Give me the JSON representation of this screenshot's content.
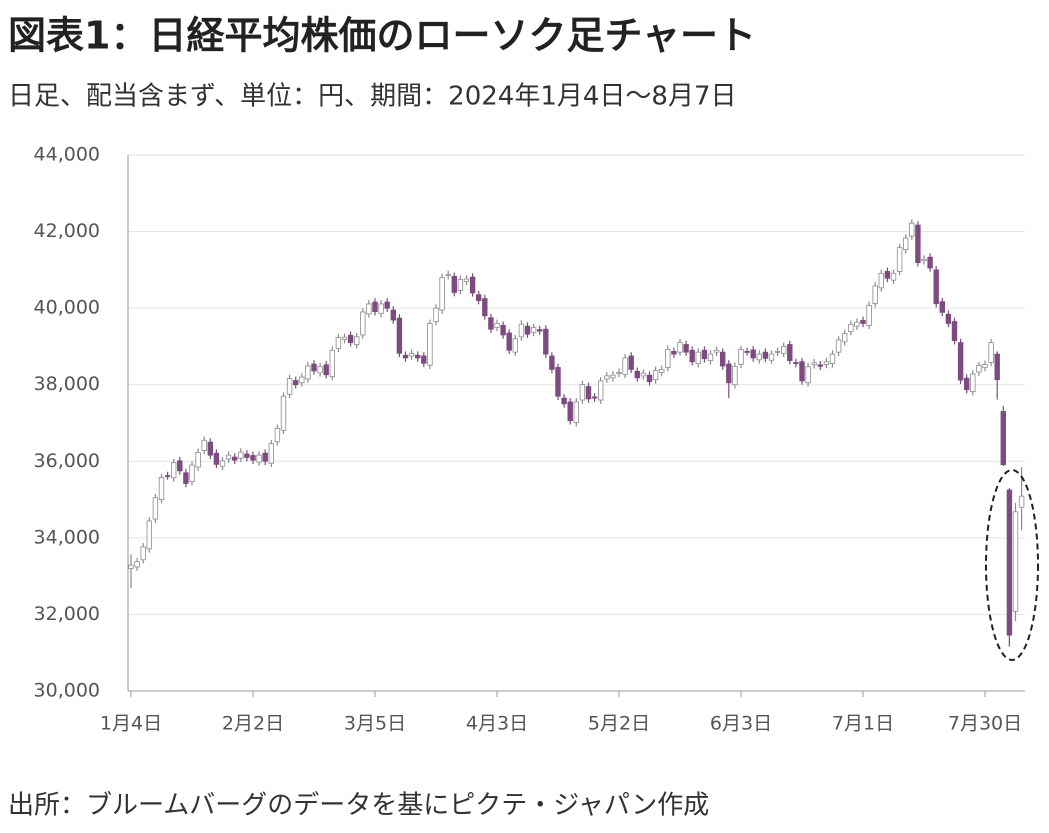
{
  "chart_data": {
    "type": "candlestick",
    "title": "図表1：日経平均株価のローソク足チャート",
    "subtitle": "日足、配当含まず、単位：円、期間：2024年1月4日～8月7日",
    "source": "出所：ブルームバーグのデータを基にピクテ・ジャパン作成",
    "up_color": "#ffffff",
    "up_stroke": "#8c8c8c",
    "down_color": "#7d4b80",
    "grid": true,
    "ylim": [
      30000,
      44000
    ],
    "yticks": [
      {
        "value": 30000,
        "label": "30,000"
      },
      {
        "value": 32000,
        "label": "32,000"
      },
      {
        "value": 34000,
        "label": "34,000"
      },
      {
        "value": 36000,
        "label": "36,000"
      },
      {
        "value": 38000,
        "label": "38,000"
      },
      {
        "value": 40000,
        "label": "40,000"
      },
      {
        "value": 42000,
        "label": "42,000"
      },
      {
        "value": 44000,
        "label": "44,000"
      }
    ],
    "categories": [
      "1月4日",
      null,
      null,
      null,
      null,
      null,
      null,
      null,
      null,
      null,
      null,
      null,
      null,
      null,
      null,
      null,
      null,
      null,
      null,
      null,
      "2月2日",
      null,
      null,
      null,
      null,
      null,
      null,
      null,
      null,
      null,
      null,
      null,
      null,
      null,
      null,
      null,
      null,
      null,
      null,
      null,
      "3月5日",
      null,
      null,
      null,
      null,
      null,
      null,
      null,
      null,
      null,
      null,
      null,
      null,
      null,
      null,
      null,
      null,
      null,
      null,
      null,
      "4月3日",
      null,
      null,
      null,
      null,
      null,
      null,
      null,
      null,
      null,
      null,
      null,
      null,
      null,
      null,
      null,
      null,
      null,
      null,
      null,
      "5月2日",
      null,
      null,
      null,
      null,
      null,
      null,
      null,
      null,
      null,
      null,
      null,
      null,
      null,
      null,
      null,
      null,
      null,
      null,
      null,
      "6月3日",
      null,
      null,
      null,
      null,
      null,
      null,
      null,
      null,
      null,
      null,
      null,
      null,
      null,
      null,
      null,
      null,
      null,
      null,
      null,
      "7月1日",
      null,
      null,
      null,
      null,
      null,
      null,
      null,
      null,
      null,
      null,
      null,
      null,
      null,
      null,
      null,
      null,
      null,
      null,
      null,
      "7月30日",
      null,
      null,
      null,
      null,
      null,
      null
    ],
    "open": [
      33200,
      33238,
      33427,
      33713,
      34491,
      34999,
      35627,
      35569,
      36013,
      35700,
      35470,
      35850,
      36280,
      36500,
      36210,
      35870,
      36060,
      36110,
      36080,
      36190,
      36150,
      35980,
      36210,
      35950,
      36510,
      36810,
      37750,
      38110,
      38050,
      38150,
      38540,
      38310,
      38520,
      38210,
      38950,
      39180,
      39290,
      39050,
      39300,
      39850,
      40160,
      39860,
      40160,
      39950,
      39740,
      38770,
      38750,
      38770,
      38750,
      38510,
      39650,
      39950,
      40850,
      40830,
      40460,
      40700,
      40810,
      40350,
      40250,
      39750,
      39500,
      39550,
      39350,
      38850,
      39250,
      39530,
      39370,
      39440,
      39450,
      38750,
      38450,
      37650,
      37550,
      37010,
      37600,
      37950,
      37680,
      37600,
      38150,
      38180,
      38300,
      38270,
      38750,
      38350,
      38230,
      38250,
      38130,
      38320,
      38450,
      38870,
      38850,
      39050,
      38900,
      38550,
      38900,
      38630,
      38850,
      38850,
      38540,
      38000,
      38530,
      38870,
      38910,
      38650,
      38850,
      38640,
      38850,
      38820,
      39050,
      38580,
      38600,
      38050,
      38520,
      38520,
      38530,
      38550,
      38850,
      39120,
      39390,
      39530,
      39680,
      39550,
      40120,
      40530,
      40960,
      40730,
      40960,
      41530,
      41880,
      42170,
      41240,
      41330,
      41000,
      40170,
      39840,
      39650,
      39100,
      38170,
      37820,
      38330,
      38450,
      38580,
      38800,
      37300,
      35250,
      32080,
      34800
    ],
    "high": [
      33570,
      33477,
      33863,
      34541,
      35149,
      35677,
      35727,
      36063,
      36113,
      35800,
      36000,
      36330,
      36650,
      36600,
      36310,
      36110,
      36260,
      36210,
      36340,
      36290,
      36250,
      36260,
      36310,
      36560,
      36960,
      37800,
      38260,
      38210,
      38300,
      38590,
      38640,
      38570,
      38620,
      39000,
      39330,
      39340,
      39390,
      39350,
      40000,
      40210,
      40260,
      40210,
      40260,
      40050,
      39840,
      38870,
      38920,
      38870,
      38850,
      39700,
      40100,
      40900,
      40980,
      40930,
      40850,
      40860,
      40910,
      40450,
      40350,
      39850,
      39700,
      39650,
      39450,
      39300,
      39680,
      39630,
      39590,
      39540,
      39550,
      38850,
      38550,
      37750,
      37650,
      37650,
      38100,
      38050,
      37780,
      38200,
      38330,
      38350,
      38420,
      38800,
      38850,
      38450,
      38400,
      38350,
      38470,
      38500,
      39020,
      38970,
      39200,
      39150,
      39000,
      38950,
      39000,
      38900,
      39000,
      38950,
      38640,
      38580,
      39020,
      38970,
      39010,
      38900,
      38950,
      38900,
      38970,
      39100,
      39150,
      38680,
      38700,
      38570,
      38670,
      38620,
      38700,
      38900,
      39270,
      39440,
      39680,
      39730,
      39780,
      40170,
      40680,
      41010,
      41060,
      41010,
      41680,
      41930,
      42320,
      42270,
      41380,
      41430,
      41100,
      40270,
      39940,
      39750,
      39200,
      38270,
      38380,
      38600,
      38630,
      39200,
      38870,
      37450,
      35300,
      34910,
      35850
    ],
    "low": [
      32690,
      33138,
      33327,
      33613,
      34391,
      34899,
      35519,
      35469,
      35650,
      35320,
      35370,
      35750,
      36180,
      36060,
      35820,
      35770,
      35960,
      35930,
      35980,
      36000,
      35930,
      35880,
      35900,
      35850,
      36410,
      36710,
      37650,
      37900,
      37950,
      38050,
      38260,
      38210,
      38160,
      38110,
      38850,
      39080,
      39000,
      38950,
      39200,
      39750,
      39810,
      39760,
      39900,
      39590,
      38720,
      38600,
      38650,
      38600,
      38460,
      38410,
      39550,
      39850,
      40750,
      40310,
      40360,
      40600,
      40300,
      40100,
      39700,
      39350,
      39400,
      39200,
      38800,
      38750,
      39150,
      39220,
      39270,
      39300,
      38700,
      38300,
      37600,
      37400,
      36960,
      36910,
      37500,
      37530,
      37550,
      37500,
      38050,
      38080,
      38200,
      38170,
      38300,
      38080,
      38130,
      37980,
      38030,
      38220,
      38350,
      38700,
      38750,
      38750,
      38500,
      38450,
      38580,
      38530,
      38750,
      38390,
      37650,
      37900,
      38430,
      38760,
      38600,
      38550,
      38590,
      38540,
      38750,
      38720,
      38530,
      38450,
      38000,
      37950,
      38420,
      38380,
      38430,
      38450,
      38750,
      39020,
      39290,
      39430,
      39500,
      39450,
      40020,
      40430,
      40680,
      40630,
      40860,
      41430,
      41780,
      41090,
      41140,
      40950,
      40020,
      39790,
      39500,
      39050,
      38020,
      37770,
      37720,
      38230,
      38350,
      38480,
      37610,
      35880,
      31160,
      31830,
      34200
    ],
    "close": [
      33288,
      33377,
      33763,
      34441,
      35049,
      35577,
      35619,
      35963,
      35750,
      35420,
      35900,
      36230,
      36550,
      36160,
      35920,
      36010,
      36160,
      36030,
      36240,
      36100,
      36030,
      36160,
      36000,
      36460,
      36860,
      37700,
      38160,
      38000,
      38200,
      38490,
      38360,
      38470,
      38260,
      38900,
      39230,
      39240,
      39100,
      39250,
      39900,
      40110,
      39910,
      40110,
      40000,
      39690,
      38820,
      38700,
      38820,
      38700,
      38560,
      39600,
      40000,
      40800,
      40880,
      40410,
      40750,
      40760,
      40400,
      40200,
      39800,
      39450,
      39600,
      39300,
      38900,
      39200,
      39580,
      39320,
      39490,
      39400,
      38800,
      38400,
      37700,
      37500,
      37060,
      37550,
      38000,
      37630,
      37650,
      38100,
      38230,
      38250,
      38320,
      38700,
      38400,
      38180,
      38300,
      38080,
      38370,
      38400,
      38920,
      38800,
      39100,
      38850,
      38600,
      38850,
      38680,
      38800,
      38900,
      38490,
      38050,
      38480,
      38920,
      38860,
      38700,
      38800,
      38690,
      38800,
      38870,
      39000,
      38630,
      38550,
      38100,
      38470,
      38570,
      38480,
      38600,
      38800,
      39170,
      39340,
      39580,
      39630,
      39600,
      40070,
      40580,
      40910,
      40780,
      40910,
      41580,
      41830,
      42220,
      41190,
      41280,
      41050,
      40120,
      39890,
      39600,
      39150,
      38120,
      37870,
      38280,
      38500,
      38530,
      39100,
      38130,
      35910,
      31460,
      34680,
      35090
    ]
  }
}
